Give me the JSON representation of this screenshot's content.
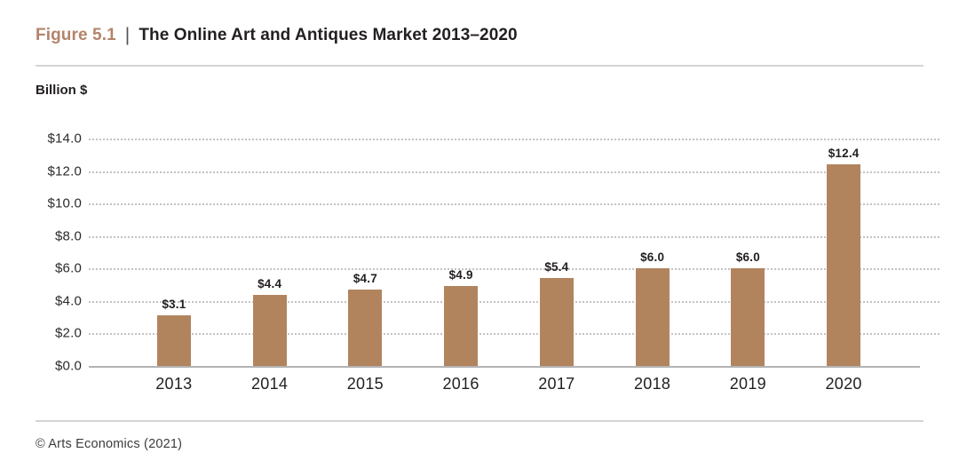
{
  "header": {
    "figure_label": "Figure 5.1",
    "separator": "|",
    "title": "The Online Art and Antiques Market 2013–2020"
  },
  "axis_title": "Billion $",
  "footer": {
    "source": "© Arts Economics (2021)"
  },
  "colors": {
    "bar": "#b2845e",
    "figure_label_accent": "#b3846a",
    "grid_dotted": "#c3c3c3",
    "axis_baseline": "#b3b3b3",
    "divider": "#d4d4d4",
    "text_dark": "#231f20"
  },
  "chart_data": {
    "type": "bar",
    "title": "The Online Art and Antiques Market 2013–2020",
    "categories": [
      "2013",
      "2014",
      "2015",
      "2016",
      "2017",
      "2018",
      "2019",
      "2020"
    ],
    "values": [
      3.1,
      4.4,
      4.7,
      4.9,
      5.4,
      6.0,
      6.0,
      12.4
    ],
    "value_labels": [
      "$3.1",
      "$4.4",
      "$4.7",
      "$4.9",
      "$5.4",
      "$6.0",
      "$6.0",
      "$12.4"
    ],
    "xlabel": "",
    "ylabel": "Billion $",
    "ylim": [
      0,
      14
    ],
    "ytick_step": 2,
    "ytick_labels": [
      "$0.0",
      "$2.0",
      "$4.0",
      "$6.0",
      "$8.0",
      "$10.0",
      "$12.0",
      "$14.0"
    ],
    "grid": "horizontal-dotted",
    "legend_position": "none",
    "bar_color": "#b2845e"
  }
}
